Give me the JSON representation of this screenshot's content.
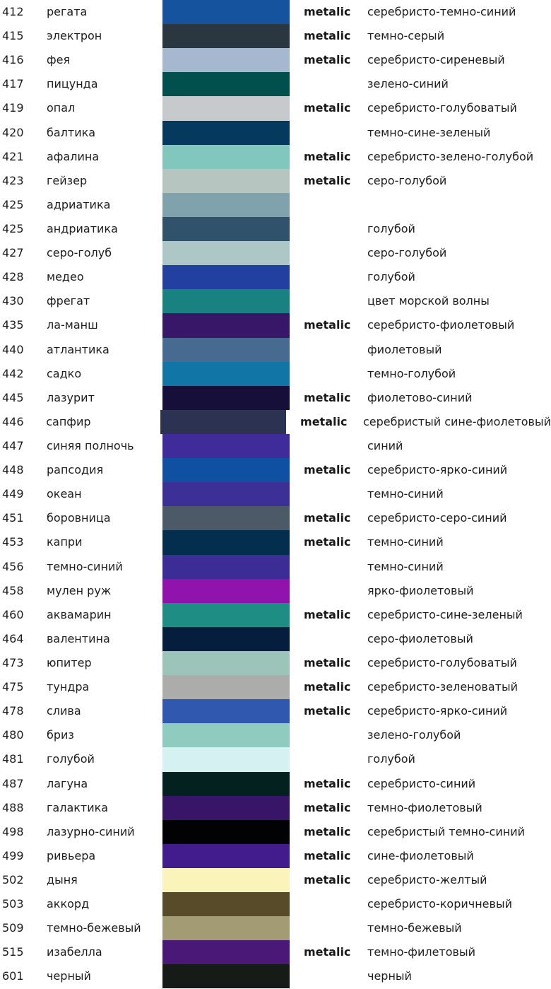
{
  "page": {
    "background": "#ffffff",
    "text_color": "#1e1e1e"
  },
  "labels": {
    "metalic": "metalic"
  },
  "chart_data": {
    "type": "table",
    "columns": [
      "code",
      "name",
      "swatch_color",
      "metalic_flag",
      "description"
    ],
    "rows": [
      {
        "code": "412",
        "name": "регата",
        "color": "#15539f",
        "metalic": true,
        "description": "серебристо-темно-синий"
      },
      {
        "code": "415",
        "name": "электрон",
        "color": "#2b3740",
        "metalic": true,
        "description": "темно-серый"
      },
      {
        "code": "416",
        "name": "фея",
        "color": "#a6b8cf",
        "metalic": true,
        "description": "серебристо-сиреневый"
      },
      {
        "code": "417",
        "name": "пицунда",
        "color": "#01504d",
        "metalic": false,
        "description": "зелено-синий"
      },
      {
        "code": "419",
        "name": "опал",
        "color": "#c6cacd",
        "metalic": true,
        "description": "серебристо-голубоватый"
      },
      {
        "code": "420",
        "name": "балтика",
        "color": "#053a5e",
        "metalic": false,
        "description": "темно-сине-зеленый"
      },
      {
        "code": "421",
        "name": "афалина",
        "color": "#82c7bd",
        "metalic": true,
        "description": "серебристо-зелено-голубой"
      },
      {
        "code": "423",
        "name": "гейзер",
        "color": "#b6c5c0",
        "metalic": true,
        "description": "серо-голубой"
      },
      {
        "code": "425",
        "name": "адриатика",
        "color": "#7fa2ad",
        "metalic": false,
        "description": ""
      },
      {
        "code": "425",
        "name": "андриатика",
        "color": "#30526a",
        "metalic": false,
        "description": "голубой"
      },
      {
        "code": "427",
        "name": "серо-голуб",
        "color": "#adc7c6",
        "metalic": false,
        "description": "серо-голубой"
      },
      {
        "code": "428",
        "name": "медео",
        "color": "#22409f",
        "metalic": false,
        "description": "голубой"
      },
      {
        "code": "430",
        "name": "фрегат",
        "color": "#198180",
        "metalic": false,
        "description": "цвет морской волны"
      },
      {
        "code": "435",
        "name": "ла-манш",
        "color": "#381668",
        "metalic": true,
        "description": "серебристо-фиолетовый"
      },
      {
        "code": "440",
        "name": "атлантика",
        "color": "#466a90",
        "metalic": false,
        "description": "фиолетовый"
      },
      {
        "code": "442",
        "name": "садко",
        "color": "#1175a5",
        "metalic": false,
        "description": "темно-голубой"
      },
      {
        "code": "445",
        "name": "лазурит",
        "color": "#150f39",
        "metalic": true,
        "description": "фиолетово-синий"
      },
      {
        "code": "446",
        "name": "сапфир",
        "color": "#2b3252",
        "metalic": true,
        "description": "серебристый сине-фиолетовый"
      },
      {
        "code": "447",
        "name": "синяя полночь",
        "color": "#3f2c9a",
        "metalic": false,
        "description": "синий"
      },
      {
        "code": "448",
        "name": "рапсодия",
        "color": "#1050a2",
        "metalic": true,
        "description": "серебристо-ярко-синий"
      },
      {
        "code": "449",
        "name": "океан",
        "color": "#3c2f96",
        "metalic": false,
        "description": "темно-синий"
      },
      {
        "code": "451",
        "name": "боровница",
        "color": "#4c5967",
        "metalic": true,
        "description": "серебристо-серо-синий"
      },
      {
        "code": "453",
        "name": "капри",
        "color": "#032e4e",
        "metalic": true,
        "description": "темно-синий"
      },
      {
        "code": "456",
        "name": "темно-синий",
        "color": "#3c2c96",
        "metalic": false,
        "description": "темно-синий"
      },
      {
        "code": "458",
        "name": "мулен руж",
        "color": "#9113ad",
        "metalic": false,
        "description": "ярко-фиолетовый"
      },
      {
        "code": "460",
        "name": "аквамарин",
        "color": "#1e8d83",
        "metalic": true,
        "description": "серебристо-сине-зеленый"
      },
      {
        "code": "464",
        "name": "валентина",
        "color": "#051e3e",
        "metalic": false,
        "description": "серо-фиолетовый"
      },
      {
        "code": "473",
        "name": "юпитер",
        "color": "#9dc4b9",
        "metalic": true,
        "description": "серебристо-голубоватый"
      },
      {
        "code": "475",
        "name": "тундра",
        "color": "#acacaa",
        "metalic": true,
        "description": "серебристо-зеленоватый"
      },
      {
        "code": "478",
        "name": "слива",
        "color": "#3058af",
        "metalic": true,
        "description": "серебристо-ярко-синий"
      },
      {
        "code": "480",
        "name": "бриз",
        "color": "#8fccbf",
        "metalic": false,
        "description": "зелено-голубой"
      },
      {
        "code": "481",
        "name": "голубой",
        "color": "#d6f1f2",
        "metalic": false,
        "description": "голубой"
      },
      {
        "code": "487",
        "name": "лагуна",
        "color": "#03211f",
        "metalic": true,
        "description": "серебристо-синий"
      },
      {
        "code": "488",
        "name": "галактика",
        "color": "#381567",
        "metalic": true,
        "description": "темно-фиолетовый"
      },
      {
        "code": "498",
        "name": "лазурно-синий",
        "color": "#020104",
        "metalic": true,
        "description": "серебристый темно-синий"
      },
      {
        "code": "499",
        "name": "ривьера",
        "color": "#421b8d",
        "metalic": true,
        "description": "сине-фиолетовый"
      },
      {
        "code": "502",
        "name": "дыня",
        "color": "#faf3ba",
        "metalic": true,
        "description": "серебристо-желтый"
      },
      {
        "code": "503",
        "name": "аккорд",
        "color": "#584b29",
        "metalic": false,
        "description": "серебристо-коричневый"
      },
      {
        "code": "509",
        "name": "темно-бежевый",
        "color": "#a39b73",
        "metalic": false,
        "description": "темно-бежевый"
      },
      {
        "code": "515",
        "name": "изабелла",
        "color": "#4a1876",
        "metalic": true,
        "description": "темно-филетовый"
      },
      {
        "code": "601",
        "name": "черный",
        "color": "#171b18",
        "metalic": false,
        "description": "черный"
      }
    ]
  }
}
